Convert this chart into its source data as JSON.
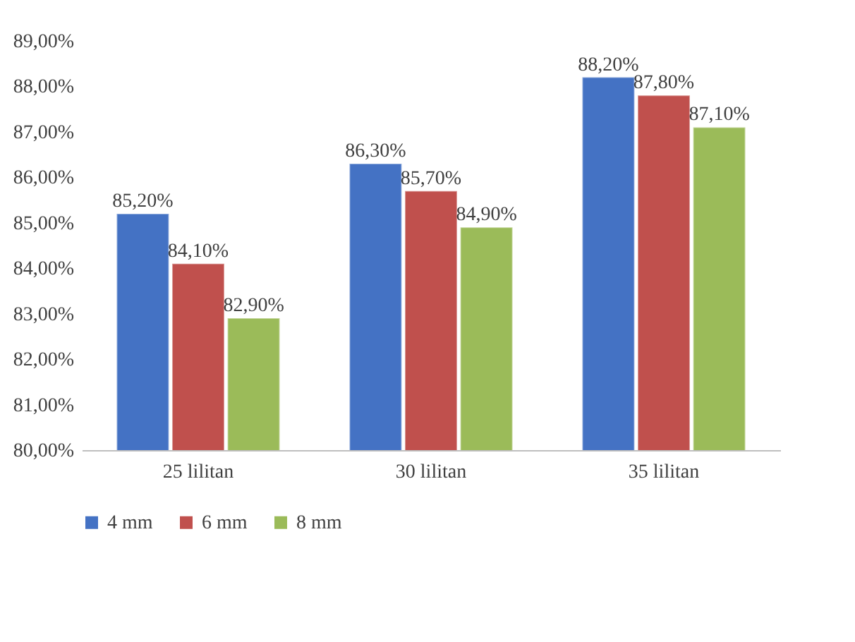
{
  "chart_data": {
    "type": "bar",
    "categories": [
      "25 lilitan",
      "30 lilitan",
      "35 lilitan"
    ],
    "series": [
      {
        "name": "4 mm",
        "color": "#4472c4",
        "values": [
          85.2,
          86.3,
          88.2
        ],
        "value_labels": [
          "85,20%",
          "86,30%",
          "88,20%"
        ]
      },
      {
        "name": "6 mm",
        "color": "#c0504d",
        "values": [
          84.1,
          85.7,
          87.8
        ],
        "value_labels": [
          "84,10%",
          "85,70%",
          "87,80%"
        ]
      },
      {
        "name": "8 mm",
        "color": "#9bbb59",
        "values": [
          82.9,
          84.9,
          87.1
        ],
        "value_labels": [
          "82,90%",
          "84,90%",
          "87,10%"
        ]
      }
    ],
    "ylim": [
      80,
      89
    ],
    "yticks": [
      {
        "value": 80,
        "label": "80,00%"
      },
      {
        "value": 81,
        "label": "81,00%"
      },
      {
        "value": 82,
        "label": "82,00%"
      },
      {
        "value": 83,
        "label": "83,00%"
      },
      {
        "value": 84,
        "label": "84,00%"
      },
      {
        "value": 85,
        "label": "85,00%"
      },
      {
        "value": 86,
        "label": "86,00%"
      },
      {
        "value": 87,
        "label": "87,00%"
      },
      {
        "value": 88,
        "label": "88,00%"
      },
      {
        "value": 89,
        "label": "89,00%"
      }
    ],
    "grid": false,
    "legend": "bottom"
  }
}
